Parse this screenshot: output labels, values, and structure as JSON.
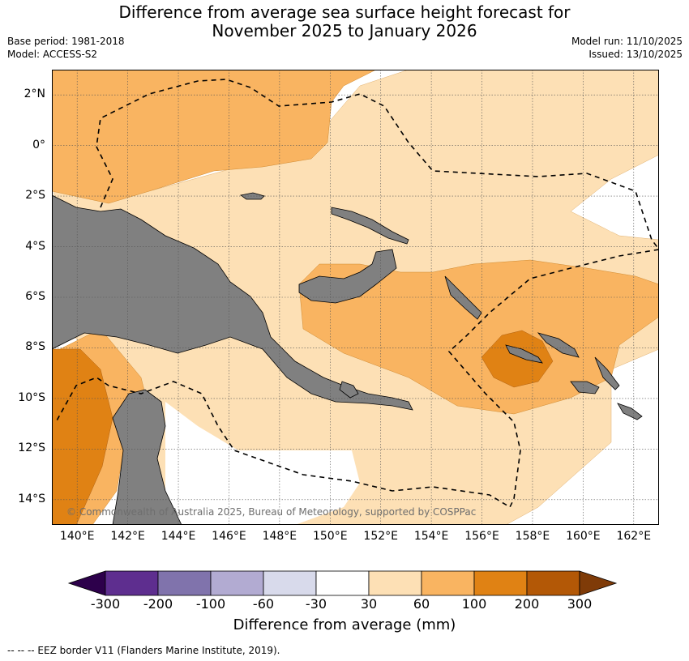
{
  "title_line1": "Difference from average sea surface height forecast for",
  "title_line2": "November 2025 to January 2026",
  "meta": {
    "base_period": "Base period: 1981-2018",
    "model": "Model: ACCESS-S2",
    "model_run": "Model run: 11/10/2025",
    "issued": "Issued: 13/10/2025"
  },
  "map": {
    "extent": {
      "lon_min": 139,
      "lon_max": 163,
      "lat_min": -15,
      "lat_max": 3
    },
    "lat_ticks": [
      {
        "value": 2,
        "label": "2°N"
      },
      {
        "value": 0,
        "label": "0°"
      },
      {
        "value": -2,
        "label": "2°S"
      },
      {
        "value": -4,
        "label": "4°S"
      },
      {
        "value": -6,
        "label": "6°S"
      },
      {
        "value": -8,
        "label": "8°S"
      },
      {
        "value": -10,
        "label": "10°S"
      },
      {
        "value": -12,
        "label": "12°S"
      },
      {
        "value": -14,
        "label": "14°S"
      }
    ],
    "lon_ticks": [
      {
        "value": 140,
        "label": "140°E"
      },
      {
        "value": 142,
        "label": "142°E"
      },
      {
        "value": 144,
        "label": "144°E"
      },
      {
        "value": 146,
        "label": "146°E"
      },
      {
        "value": 148,
        "label": "148°E"
      },
      {
        "value": 150,
        "label": "150°E"
      },
      {
        "value": 152,
        "label": "152°E"
      },
      {
        "value": 154,
        "label": "154°E"
      },
      {
        "value": 156,
        "label": "156°E"
      },
      {
        "value": 158,
        "label": "158°E"
      },
      {
        "value": 160,
        "label": "160°E"
      },
      {
        "value": 162,
        "label": "162°E"
      }
    ],
    "copyright": "© Commonwealth of Australia 2025, Bureau of Meteorology, supported by COSPPac",
    "colors": {
      "land": "#808080",
      "c30_60": "#fde0b5",
      "c60_100": "#f9b461",
      "c100_200": "#e08214",
      "c200_300": "#b35806",
      "below30": "#ffffff",
      "gridline": "#555555"
    }
  },
  "colorbar": {
    "label": "Difference from average (mm)",
    "ticks": [
      "-300",
      "-200",
      "-100",
      "-60",
      "-30",
      "30",
      "60",
      "100",
      "200",
      "300"
    ],
    "colors": [
      "#5e2e8f",
      "#8073ac",
      "#b2abd2",
      "#d8daeb",
      "#ffffff",
      "#fde0b5",
      "#f9b461",
      "#e08214",
      "#b35806"
    ],
    "extend_low_color": "#2d004b",
    "extend_high_color": "#7f3b08"
  },
  "eez_note": "--  --  -- EEZ border V11 (Flanders Marine Institute, 2019)."
}
